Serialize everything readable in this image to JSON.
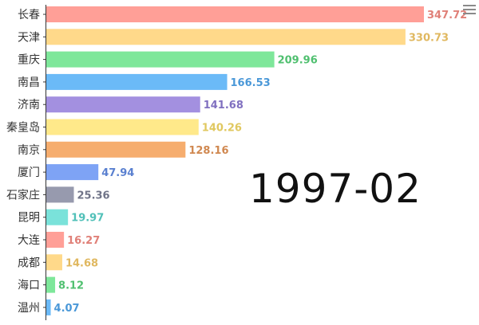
{
  "toolbar": {
    "menu_icon": "hamburger-menu-icon"
  },
  "chart_data": {
    "type": "bar",
    "orientation": "horizontal",
    "timeline_label": "1997-02",
    "categories": [
      "长春",
      "天津",
      "重庆",
      "南昌",
      "济南",
      "秦皇岛",
      "南京",
      "厦门",
      "石家庄",
      "昆明",
      "大连",
      "成都",
      "海口",
      "温州"
    ],
    "values": [
      347.72,
      330.73,
      209.96,
      166.53,
      141.68,
      140.26,
      128.16,
      47.94,
      25.36,
      19.97,
      16.27,
      14.68,
      8.12,
      4.07
    ],
    "value_labels": [
      "347.72",
      "330.73",
      "209.96",
      "166.53",
      "141.68",
      "140.26",
      "128.16",
      "47.94",
      "25.36",
      "19.97",
      "16.27",
      "14.68",
      "8.12",
      "4.07"
    ],
    "colors": [
      "#ff9f97",
      "#ffd98a",
      "#7ee79a",
      "#6bbaf7",
      "#a390e0",
      "#ffe98a",
      "#f6ad6e",
      "#7ea3f5",
      "#979aae",
      "#7ae2da",
      "#ff9f97",
      "#ffd98a",
      "#7ee79a",
      "#6bbaf7"
    ],
    "label_colors": [
      "#e08078",
      "#e0b860",
      "#50c070",
      "#4a98d8",
      "#8070c0",
      "#e0c860",
      "#d08850",
      "#5a80d0",
      "#707488",
      "#50c0b8",
      "#e08078",
      "#e0b860",
      "#50c070",
      "#4a98d8"
    ],
    "xlim": [
      0,
      347.72
    ],
    "grid": false,
    "legend": "none"
  }
}
